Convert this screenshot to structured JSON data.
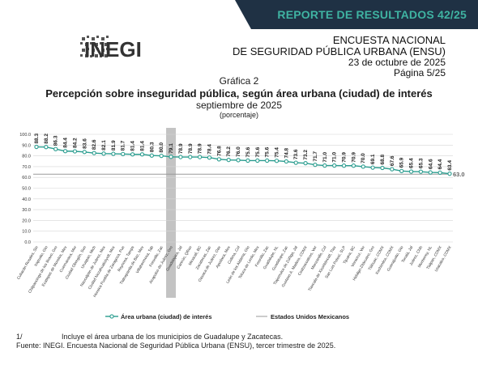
{
  "header": {
    "banner": "REPORTE DE RESULTADOS 42/25",
    "logo_text": "INEGI",
    "survey_line1": "ENCUESTA NACIONAL",
    "survey_line2": "DE SEGURIDAD PÚBLICA URBANA (ENSU)",
    "date": "23 de octubre de 2025",
    "page": "Página 5/25",
    "banner_color": "#1f3144",
    "banner_text_color": "#3fb3a2"
  },
  "chart_data": {
    "type": "line",
    "title_label": "Gráfica 2",
    "title": "Percepción sobre inseguridad pública, según área urbana (ciudad) de interés",
    "subtitle": "septiembre de 2025",
    "unit": "(porcentaje)",
    "ylim": [
      0,
      100
    ],
    "yticks": [
      "0.0",
      "10.0",
      "20.0",
      "30.0",
      "40.0",
      "50.0",
      "60.0",
      "70.0",
      "80.0",
      "90.0",
      "100.0"
    ],
    "categories": [
      "Culiacán Rosales, Sin",
      "Irapuato, Gto",
      "Chilpancingo de los Bravo, Gro",
      "Ecatepec de Morelos, Mex",
      "Cuernavaca, Mor",
      "Ciudad Obregón, Son",
      "Uruapan, Mich",
      "Naucalpan de Juárez, Mex",
      "Ciudad Nezahualcóyotl, Mex",
      "Heroica Puebla de Zaragoza, Pue",
      "Reynosa, Tamps",
      "Tlalnepantla de Baz, Mex",
      "Villahermosa, Tab",
      "Fresnillo, Zac",
      "Acapulco de Juárez, Gro",
      "Guadalajara, Jal",
      "Cancún, QRoo",
      "Mexicali, BC",
      "Zacatecas, Zac",
      "Oaxaca de Juárez, Oax",
      "Apodaca, Mex",
      "Colima, Col",
      "León de los Aldama, Gto",
      "Toluca de Lerdo, Mex",
      "Fresnillo, Zac",
      "Guadalupe, NL",
      "Guadalupe, Zac",
      "Tlajomulco de Zúñiga, Jal",
      "Gustavo A. Madero, CDMX",
      "Coatzacoalcos, Ver",
      "Manzanillo, Col",
      "Tlaxcala de Xicohténcatl, Tlax",
      "San Luis Potosí, SLP",
      "Tijuana, BC",
      "Veracruz, Ver",
      "Hidalgo-Zitácuaro, Gro",
      "Tláhuac, CDMX",
      "Xochimilco, CDMX",
      "Guanajuato, Gto",
      "Tonalá, Jal",
      "Juárez, Chih",
      "Monterrey, NL",
      "Tlalpan, CDMX",
      "Iztacalco, CDMX"
    ],
    "values": [
      88.3,
      88.2,
      86.3,
      84.4,
      84.2,
      83.6,
      82.6,
      82.1,
      81.9,
      81.7,
      81.4,
      81.4,
      80.3,
      80.0,
      79.1,
      78.9,
      78.9,
      78.9,
      78.4,
      76.8,
      76.2,
      76.0,
      75.6,
      75.6,
      75.6,
      75.4,
      74.8,
      73.6,
      73.2,
      71.7,
      71.0,
      71.0,
      70.9,
      70.9,
      70.0,
      69.1,
      68.8,
      67.6,
      65.9,
      65.4,
      65.3,
      64.6,
      64.4,
      63.4
    ],
    "value_labels": [
      "88.3",
      "88.2",
      "86.3",
      "84.4",
      "84.2",
      "83.6",
      "82.6",
      "82.1",
      "81.9",
      "81.7",
      "81.4",
      "81.4",
      "80.3",
      "80.0",
      "79.1",
      "78.9",
      "78.9",
      "78.9",
      "78.4",
      "76.8",
      "76.2",
      "76.0",
      "75.6",
      "75.6",
      "75.6",
      "75.4",
      "74.8",
      "73.6",
      "73.2",
      "71.7",
      "71.0",
      "71.0",
      "70.9",
      "70.9",
      "70.0",
      "69.1",
      "68.8",
      "67.6",
      "65.9",
      "65.4",
      "65.3",
      "64.6",
      "64.4",
      "63.4"
    ],
    "highlight_index": 14,
    "reference": {
      "name": "Estados Unidos Mexicanos",
      "value": 63.0,
      "label": "63.0"
    },
    "series_name": "Área urbana (ciudad) de interés",
    "series_color": "#2a9d8f",
    "reference_color": "#9a9a9a",
    "highlight_color": "#b8b8b8",
    "grid": true,
    "legend_position": "bottom"
  },
  "footnote": {
    "marker": "1/",
    "text": "Incluye el área urbana de los municipios de Guadalupe y Zacatecas.",
    "source": "Fuente: INEGI. Encuesta Nacional de Seguridad Pública Urbana (ENSU), tercer trimestre de 2025."
  }
}
